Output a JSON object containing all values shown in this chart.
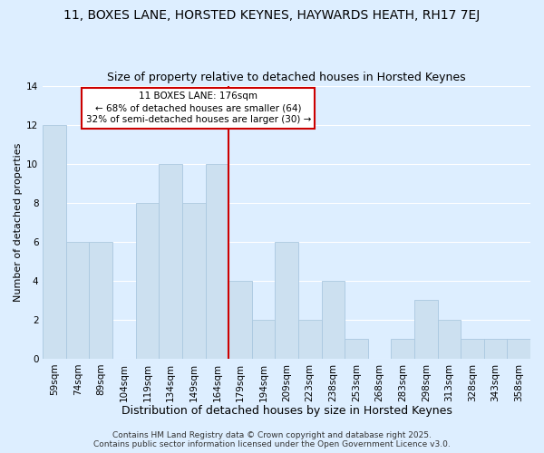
{
  "title": "11, BOXES LANE, HORSTED KEYNES, HAYWARDS HEATH, RH17 7EJ",
  "subtitle": "Size of property relative to detached houses in Horsted Keynes",
  "xlabel": "Distribution of detached houses by size in Horsted Keynes",
  "ylabel": "Number of detached properties",
  "bar_labels": [
    "59sqm",
    "74sqm",
    "89sqm",
    "104sqm",
    "119sqm",
    "134sqm",
    "149sqm",
    "164sqm",
    "179sqm",
    "194sqm",
    "209sqm",
    "223sqm",
    "238sqm",
    "253sqm",
    "268sqm",
    "283sqm",
    "298sqm",
    "313sqm",
    "328sqm",
    "343sqm",
    "358sqm"
  ],
  "bar_values": [
    12,
    6,
    6,
    0,
    8,
    10,
    8,
    10,
    4,
    2,
    6,
    2,
    4,
    1,
    0,
    1,
    3,
    2,
    1,
    1,
    1
  ],
  "bar_color": "#cce0f0",
  "bar_edge_color": "#aac8e0",
  "vline_color": "#cc0000",
  "annotation_title": "11 BOXES LANE: 176sqm",
  "annotation_line1": "← 68% of detached houses are smaller (64)",
  "annotation_line2": "32% of semi-detached houses are larger (30) →",
  "annotation_box_color": "#ffffff",
  "annotation_box_edge": "#cc0000",
  "ylim": [
    0,
    14
  ],
  "yticks": [
    0,
    2,
    4,
    6,
    8,
    10,
    12,
    14
  ],
  "background_color": "#ddeeff",
  "plot_bg_color": "#ddeeff",
  "grid_color": "#ffffff",
  "footer_line1": "Contains HM Land Registry data © Crown copyright and database right 2025.",
  "footer_line2": "Contains public sector information licensed under the Open Government Licence v3.0.",
  "title_fontsize": 10,
  "subtitle_fontsize": 9,
  "xlabel_fontsize": 9,
  "ylabel_fontsize": 8,
  "tick_fontsize": 7.5,
  "footer_fontsize": 6.5
}
